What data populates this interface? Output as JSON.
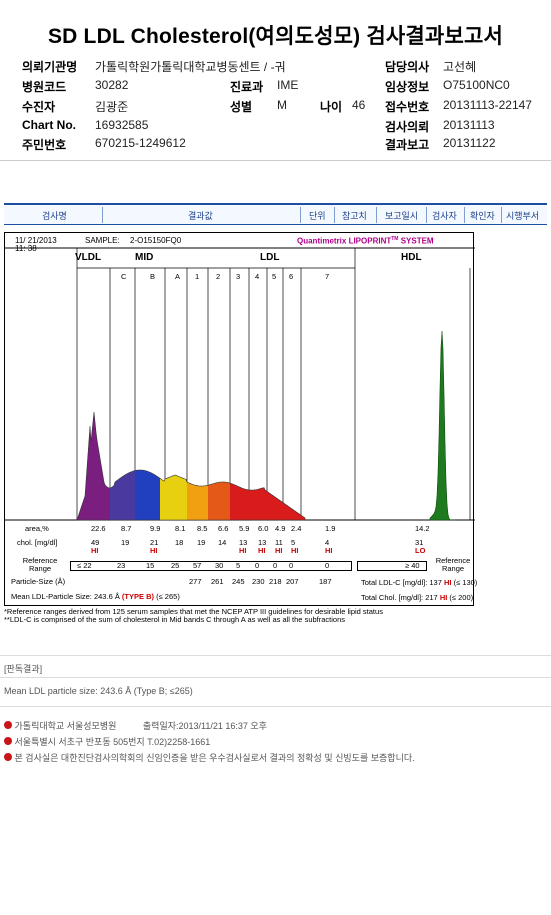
{
  "title": "SD LDL Cholesterol(여의도성모) 검사결과보고서",
  "header": {
    "left": [
      {
        "label": "의뢰기관명",
        "value": "가톨릭학원가톨릭대학교병동센트 / -궈"
      },
      {
        "label": "병원코드",
        "value": "30282"
      },
      {
        "label": "수진자",
        "value": "김광준"
      },
      {
        "label": "Chart No.",
        "value": "16932585"
      },
      {
        "label": "주민번호",
        "value": "670215-1249612"
      }
    ],
    "dept": {
      "label": "진료과",
      "value": "IME"
    },
    "sex": {
      "label": "성별",
      "value": "M"
    },
    "age": {
      "label": "나이",
      "value": "46"
    },
    "right": [
      {
        "label": "담당의사",
        "value": "고선혜"
      },
      {
        "label": "임상정보",
        "value": "O75100NC0"
      },
      {
        "label": "접수번호",
        "value": "20131113-22147"
      },
      {
        "label": "검사의뢰",
        "value": "20131113"
      },
      {
        "label": "결과보고",
        "value": "20131122"
      }
    ]
  },
  "tabs": [
    "검사명",
    "결과값",
    "단위",
    "참고치",
    "보고일시",
    "검사자",
    "확인자",
    "시행부서"
  ],
  "report": {
    "date": "11/ 21/2013",
    "time": "11: 38",
    "sample_label": "SAMPLE:",
    "sample": "2-O15150FQ0",
    "brand": "Quantimetrix LIPOPRINT",
    "brand_tm": "TM",
    "brand_suffix": "SYSTEM",
    "groups": [
      "VLDL",
      "MID",
      "LDL",
      "HDL"
    ],
    "bands": [
      "C",
      "B",
      "A",
      "1",
      "2",
      "3",
      "4",
      "5",
      "6",
      "7"
    ],
    "rows": {
      "area_label": "area,%",
      "area": [
        "22.6",
        "8.7",
        "9.9",
        "8.1",
        "8.5",
        "6.6",
        "5.9",
        "6.0",
        "4.9",
        "2.4",
        "1.9",
        "14.2"
      ],
      "chol_label": "chol. [mg/dl]",
      "chol": [
        "49",
        "19",
        "21",
        "18",
        "19",
        "14",
        "13",
        "13",
        "11",
        "5",
        "4",
        "31"
      ],
      "flags": [
        "HI",
        "",
        "HI",
        "",
        "",
        "",
        "HI",
        "HI",
        "HI",
        "HI",
        "HI",
        "LO"
      ],
      "ref_label": "Reference Range",
      "ref": [
        "≤ 22",
        "23",
        "15",
        "25",
        "57",
        "30",
        "5",
        "0",
        "0",
        "0",
        "0"
      ],
      "hdl_ref": "≥ 40",
      "ref_right": "Reference Range",
      "ps_label": "Particle-Size (Å)",
      "ps": [
        "277",
        "261",
        "245",
        "230",
        "218",
        "207",
        "187"
      ],
      "total_ldl_label": "Total LDL-C [mg/dl]:",
      "total_ldl": "137",
      "total_ldl_flag": "HI",
      "total_ldl_ref": "(≤ 130)",
      "total_chol_label": "Total Chol. [mg/dl]:",
      "total_chol": "217",
      "total_chol_flag": "HI",
      "total_chol_ref": "(≤ 200)",
      "mean_label": "Mean LDL-Particle Size:",
      "mean_value": "243.6 Å",
      "mean_type": "(TYPE B)",
      "mean_type_ref": "(≤ 265)"
    },
    "notes": [
      "*Reference ranges derived from 125 serum samples that met the NCEP ATP III guidelines for desirable lipid status",
      "**LDL-C is comprised of the sum of cholesterol in Mid bands C through A as well as all the subfractions"
    ]
  },
  "interpretation": {
    "heading": "[판독결과]",
    "text": "Mean LDL particle size: 243.6 Å (Type B; ≤265)"
  },
  "footer": [
    {
      "text": "가톨릭대학교 서울성모병원",
      "extra": "출력일자:2013/11/21 16:37 오후"
    },
    {
      "text": "서울특별시 서초구 반포동 505번지 T.02)2258-1661"
    },
    {
      "text": "본 검사실은 대한진단검사의학회의 신임인증을 받은 우수검사실로서 결과의 정확성 및 신빙도를 보증합니다."
    }
  ],
  "colors": {
    "vldl": "#7a1f7f",
    "mid_c": "#4a3aa0",
    "mid_b": "#2040c0",
    "mid_a": "#e6d010",
    "ldl1": "#f0a010",
    "ldl2": "#e45818",
    "ldl_rest": "#d81c1c",
    "hdl": "#1f7a1f",
    "header_blue": "#1c4fa0",
    "flag_red": "#cc0000"
  }
}
